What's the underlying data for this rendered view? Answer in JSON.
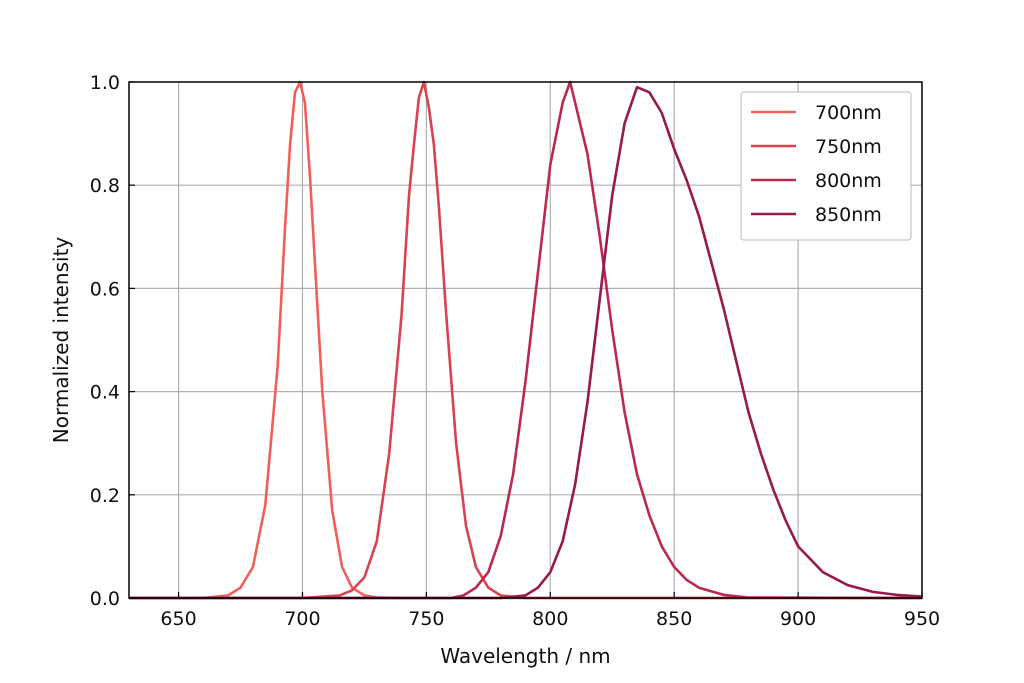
{
  "chart_data": {
    "type": "line",
    "title": "",
    "xlabel": "Wavelength / nm",
    "ylabel": "Normalized intensity",
    "xlim": [
      630,
      950
    ],
    "ylim": [
      0,
      1
    ],
    "xticks": [
      650,
      700,
      750,
      800,
      850,
      900,
      950
    ],
    "xtick_labels": [
      "650",
      "700",
      "750",
      "800",
      "850",
      "900",
      "950"
    ],
    "yticks": [
      0,
      0.2,
      0.4,
      0.6,
      0.8,
      1.0
    ],
    "ytick_labels": [
      "0.0",
      "0.2",
      "0.4",
      "0.6",
      "0.8",
      "1.0"
    ],
    "grid": true,
    "legend_position": "top-right",
    "series": [
      {
        "name": "700nm",
        "color": "#f0605a",
        "x": [
          630,
          660,
          670,
          675,
          680,
          685,
          690,
          693,
          695,
          697,
          699,
          701,
          703,
          705,
          708,
          712,
          716,
          720,
          725,
          730,
          740,
          760,
          800,
          950
        ],
        "y": [
          0,
          0,
          0.005,
          0.02,
          0.06,
          0.18,
          0.45,
          0.72,
          0.88,
          0.98,
          1.0,
          0.96,
          0.82,
          0.65,
          0.4,
          0.17,
          0.06,
          0.02,
          0.005,
          0.001,
          0,
          0,
          0,
          0
        ]
      },
      {
        "name": "750nm",
        "color": "#d84350",
        "x": [
          630,
          700,
          715,
          720,
          725,
          730,
          735,
          740,
          743,
          745,
          747,
          749,
          751,
          753,
          755,
          758,
          762,
          766,
          770,
          775,
          780,
          790,
          820,
          950
        ],
        "y": [
          0,
          0,
          0.005,
          0.015,
          0.04,
          0.11,
          0.28,
          0.55,
          0.78,
          0.88,
          0.97,
          1.0,
          0.95,
          0.88,
          0.76,
          0.55,
          0.3,
          0.14,
          0.06,
          0.02,
          0.005,
          0,
          0,
          0
        ]
      },
      {
        "name": "800nm",
        "color": "#bb2a4e",
        "x": [
          630,
          760,
          765,
          770,
          775,
          780,
          785,
          790,
          795,
          800,
          805,
          808,
          810,
          815,
          820,
          825,
          830,
          835,
          840,
          845,
          850,
          855,
          860,
          870,
          880,
          950
        ],
        "y": [
          0,
          0,
          0.005,
          0.02,
          0.05,
          0.12,
          0.24,
          0.42,
          0.63,
          0.84,
          0.96,
          1.0,
          0.96,
          0.86,
          0.7,
          0.52,
          0.36,
          0.24,
          0.16,
          0.1,
          0.06,
          0.035,
          0.02,
          0.006,
          0.001,
          0
        ]
      },
      {
        "name": "850nm",
        "color": "#961a4b",
        "x": [
          630,
          780,
          790,
          795,
          800,
          805,
          810,
          815,
          820,
          825,
          830,
          835,
          840,
          845,
          850,
          855,
          860,
          865,
          870,
          875,
          880,
          885,
          890,
          895,
          900,
          910,
          920,
          930,
          940,
          950
        ],
        "y": [
          0,
          0,
          0.005,
          0.02,
          0.05,
          0.11,
          0.22,
          0.38,
          0.58,
          0.78,
          0.92,
          0.99,
          0.98,
          0.94,
          0.87,
          0.81,
          0.74,
          0.65,
          0.56,
          0.46,
          0.36,
          0.28,
          0.21,
          0.15,
          0.1,
          0.05,
          0.025,
          0.012,
          0.006,
          0.003
        ]
      }
    ]
  }
}
